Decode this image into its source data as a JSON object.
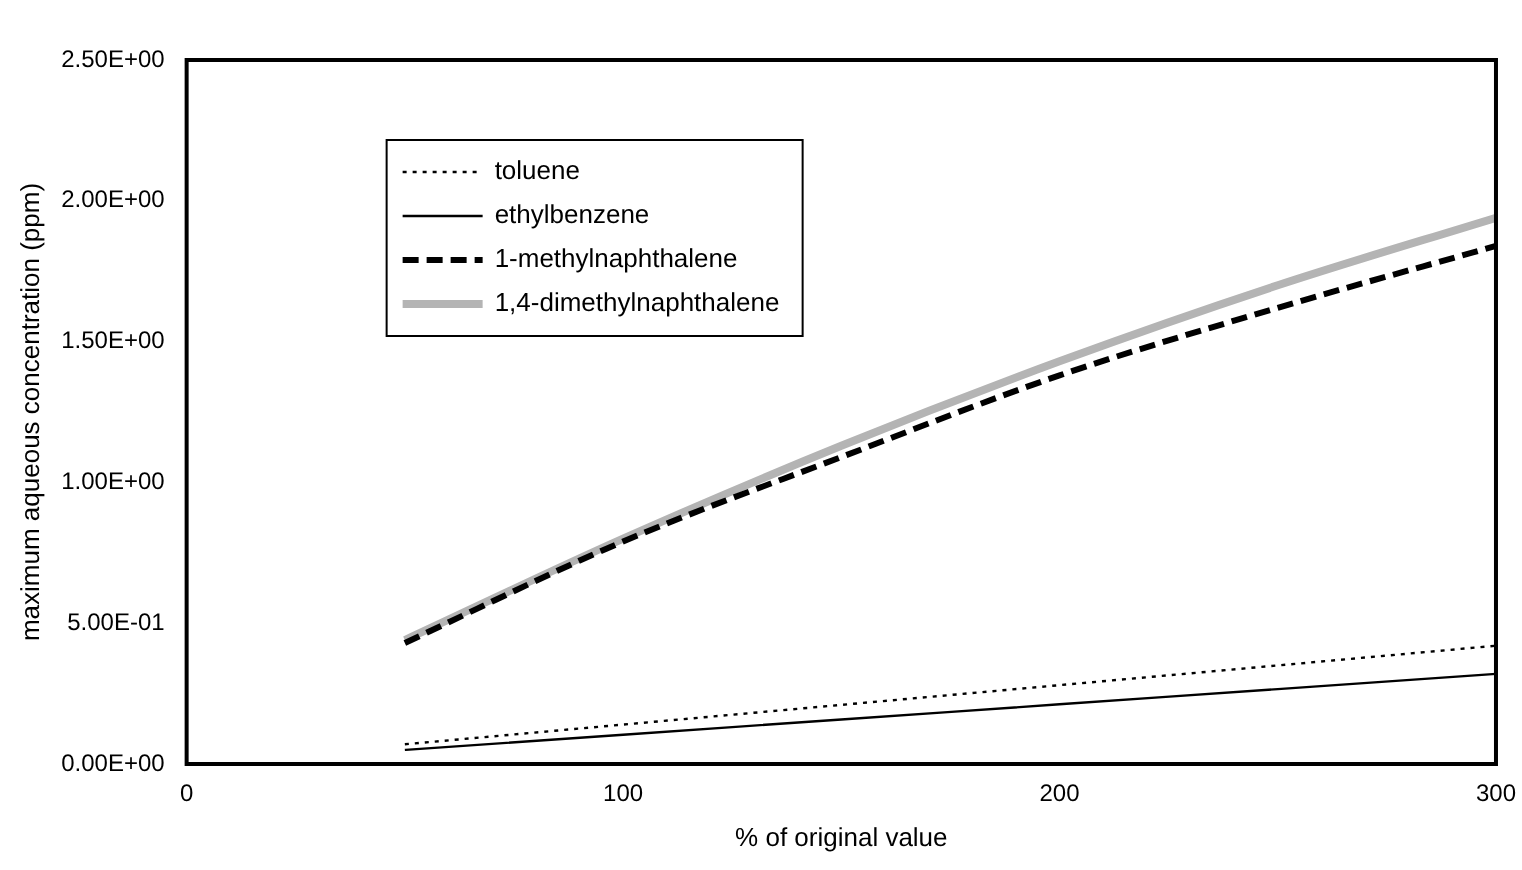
{
  "chart_data": {
    "type": "line",
    "xlabel": "% of original value",
    "ylabel": "maximum aqueous concentration (ppm)",
    "x": [
      50,
      100,
      150,
      200,
      250,
      300
    ],
    "series": [
      {
        "name": "toluene",
        "color": "#000000",
        "line_style": "dotted",
        "values": [
          0.07,
          0.14,
          0.21,
          0.28,
          0.35,
          0.42
        ]
      },
      {
        "name": "ethylbenzene",
        "color": "#000000",
        "line_style": "solid",
        "values": [
          0.05,
          0.104,
          0.158,
          0.212,
          0.266,
          0.32
        ]
      },
      {
        "name": "1-methylnaphthalene",
        "color": "#000000",
        "line_style": "dashed",
        "values": [
          0.43,
          0.79,
          1.09,
          1.38,
          1.62,
          1.84
        ]
      },
      {
        "name": "1,4-dimethylnaphthalene",
        "color": "#b4b4b4",
        "line_style": "solid",
        "values": [
          0.44,
          0.8,
          1.13,
          1.43,
          1.7,
          1.94
        ]
      }
    ],
    "xlim": [
      0,
      300
    ],
    "xticks": [
      0,
      100,
      200,
      300
    ],
    "ylim": [
      0,
      2.5
    ],
    "yticks": [
      {
        "value": 0,
        "label": "0.00E+00"
      },
      {
        "value": 0.5,
        "label": "5.00E-01"
      },
      {
        "value": 1,
        "label": "1.00E+00"
      },
      {
        "value": 1.5,
        "label": "1.50E+00"
      },
      {
        "value": 2,
        "label": "2.00E+00"
      },
      {
        "value": 2.5,
        "label": "2.50E+00"
      }
    ],
    "grid": false,
    "legend": "top left",
    "marker": "none"
  }
}
